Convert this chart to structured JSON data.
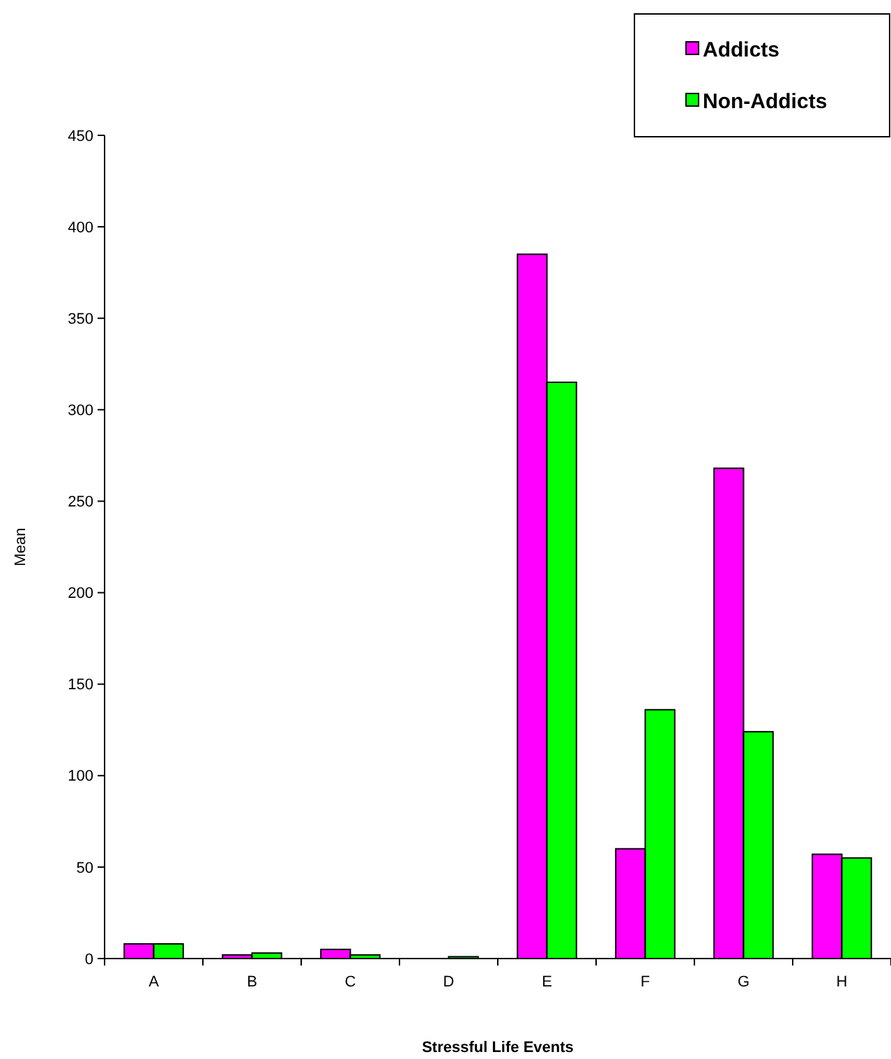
{
  "chart_data": {
    "type": "bar",
    "xlabel": "Stressful Life Events",
    "ylabel": "Mean",
    "categories": [
      "A",
      "B",
      "C",
      "D",
      "E",
      "F",
      "G",
      "H"
    ],
    "series": [
      {
        "name": "Addicts",
        "color": "#ff00ff",
        "values": [
          8,
          2,
          5,
          0,
          385,
          60,
          268,
          57
        ]
      },
      {
        "name": "Non-Addicts",
        "color": "#00ff00",
        "values": [
          8,
          3,
          2,
          1,
          315,
          136,
          124,
          55
        ]
      }
    ],
    "ylim": [
      0,
      450
    ],
    "yticks": [
      0,
      50,
      100,
      150,
      200,
      250,
      300,
      350,
      400,
      450
    ],
    "grid": false,
    "legend": "top right"
  }
}
